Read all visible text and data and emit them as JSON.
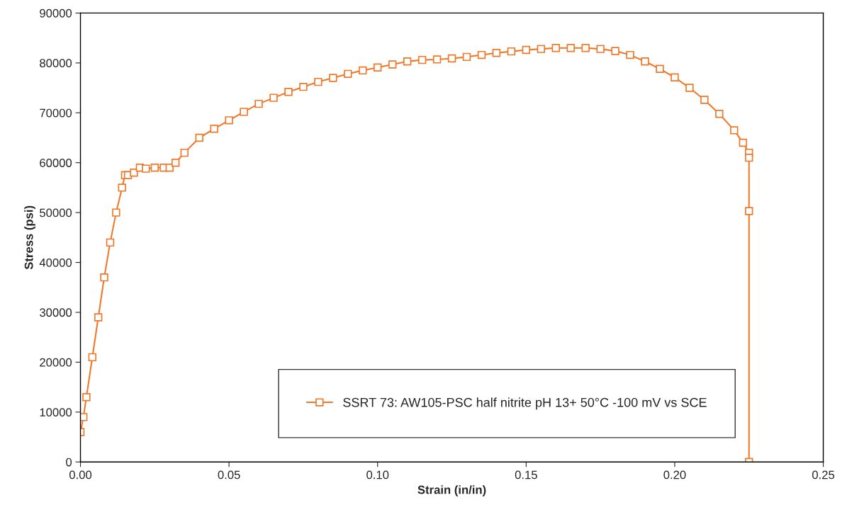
{
  "chart_data": {
    "type": "line",
    "xlabel": "Strain (in/in)",
    "ylabel": "Stress (psi)",
    "x": [
      0.0,
      0.001,
      0.002,
      0.004,
      0.006,
      0.008,
      0.01,
      0.012,
      0.014,
      0.015,
      0.016,
      0.018,
      0.02,
      0.022,
      0.025,
      0.028,
      0.03,
      0.032,
      0.035,
      0.04,
      0.045,
      0.05,
      0.055,
      0.06,
      0.065,
      0.07,
      0.075,
      0.08,
      0.085,
      0.09,
      0.095,
      0.1,
      0.105,
      0.11,
      0.115,
      0.12,
      0.125,
      0.13,
      0.135,
      0.14,
      0.145,
      0.15,
      0.155,
      0.16,
      0.165,
      0.17,
      0.175,
      0.18,
      0.185,
      0.19,
      0.195,
      0.2,
      0.205,
      0.21,
      0.215,
      0.22,
      0.223,
      0.225,
      0.225,
      0.225,
      0.225
    ],
    "series": [
      {
        "name": "SSRT 73: AW105-PSC half nitrite pH 13+ 50°C -100 mV vs SCE",
        "color": "#f07828",
        "values": [
          6000,
          9000,
          13000,
          21000,
          29000,
          37000,
          44000,
          50000,
          55000,
          57500,
          57500,
          58000,
          59000,
          58800,
          59000,
          59000,
          59000,
          60000,
          62000,
          65000,
          66800,
          68500,
          70200,
          71800,
          73000,
          74200,
          75200,
          76200,
          77000,
          77800,
          78500,
          79100,
          79700,
          80300,
          80600,
          80700,
          80900,
          81200,
          81600,
          82000,
          82300,
          82600,
          82800,
          83000,
          83000,
          83000,
          82800,
          82400,
          81600,
          80300,
          78800,
          77100,
          75000,
          72600,
          69800,
          66500,
          64000,
          62000,
          61000,
          50300,
          0
        ]
      }
    ],
    "xlim": [
      0.0,
      0.25
    ],
    "xticks": [
      {
        "value": 0,
        "label": "0.00"
      },
      {
        "value": 0.05,
        "label": "0.05"
      },
      {
        "value": 0.1,
        "label": "0.10"
      },
      {
        "value": 0.15,
        "label": "0.15"
      },
      {
        "value": 0.2,
        "label": "0.20"
      },
      {
        "value": 0.25,
        "label": "0.25"
      }
    ],
    "ylim": [
      0,
      90000
    ],
    "yticks": [
      0,
      10000,
      20000,
      30000,
      40000,
      50000,
      60000,
      70000,
      80000,
      90000
    ],
    "marker": "square",
    "line_style": "solid",
    "grid": false,
    "legend": "bottom right"
  }
}
